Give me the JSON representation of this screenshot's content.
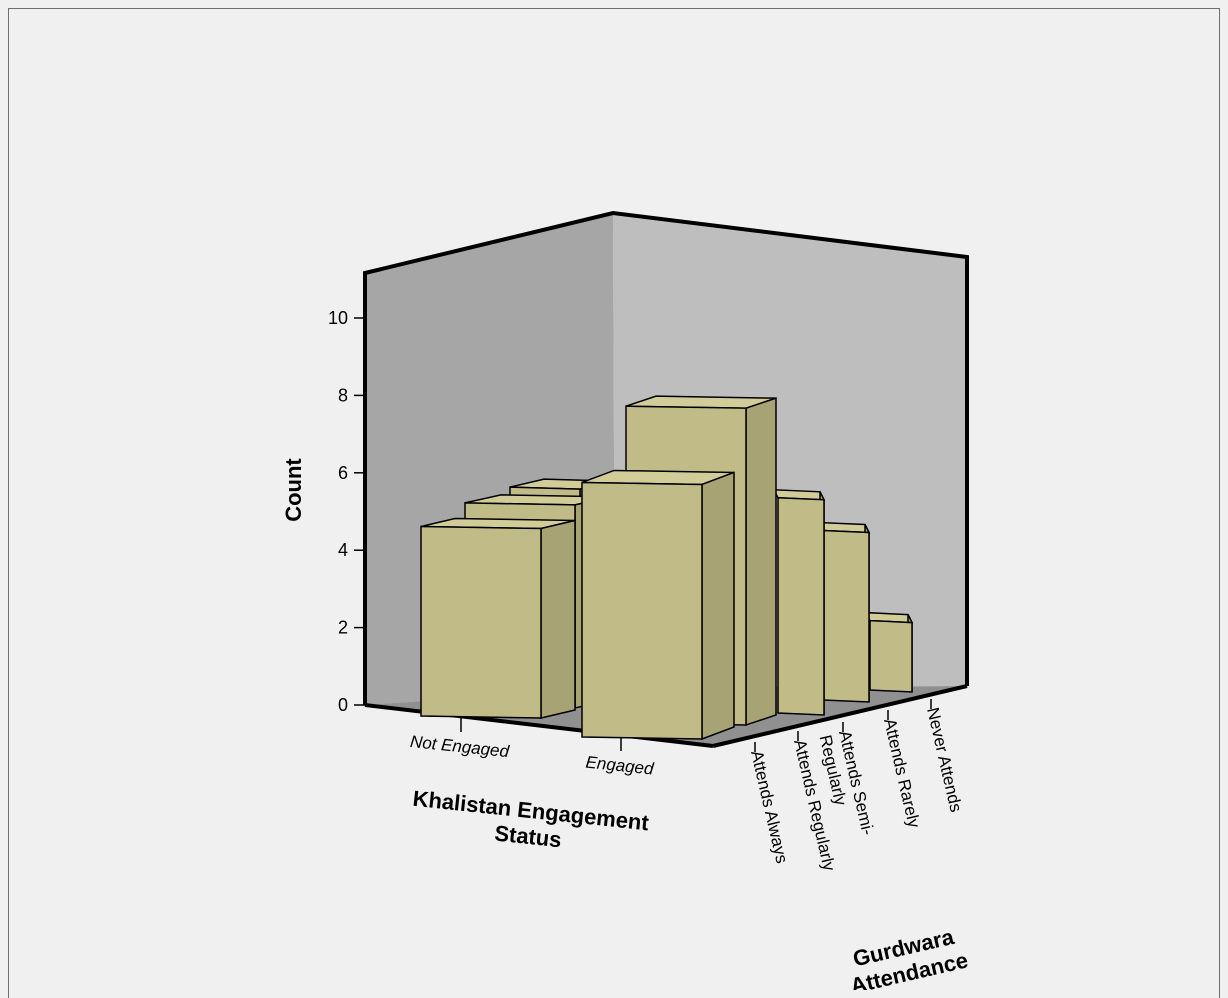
{
  "chart_data": {
    "type": "bar3d",
    "title": "",
    "xlabel": "Khalistan Engagement Status",
    "zlabel": "Gurdwara Attendance",
    "ylabel": "Count",
    "ylim": [
      0,
      10
    ],
    "yticks": [
      0,
      2,
      4,
      6,
      8,
      10
    ],
    "categories": [
      "Not Engaged",
      "Engaged"
    ],
    "z_categories": [
      "Attends Always",
      "Attends Regularly",
      "Attends Semi-\nRegularly",
      "Attends Rarely",
      "Never Attends"
    ],
    "series": [
      {
        "values": [
          5,
          6
        ]
      },
      {
        "values": [
          5,
          null
        ]
      },
      {
        "values": [
          5,
          5
        ]
      },
      {
        "values": [
          null,
          5
        ]
      },
      {
        "values": [
          null,
          2
        ]
      }
    ],
    "front_values": [
      5,
      6.5
    ],
    "back_top": 8.6,
    "colors": {
      "bar_front": "#c0bb87",
      "bar_top": "#d2cd98",
      "bar_side": "#a8a375",
      "wall_left": "#a6a6a6",
      "wall_right": "#bebebe",
      "floor": "#909090",
      "frame": "#000000"
    }
  }
}
